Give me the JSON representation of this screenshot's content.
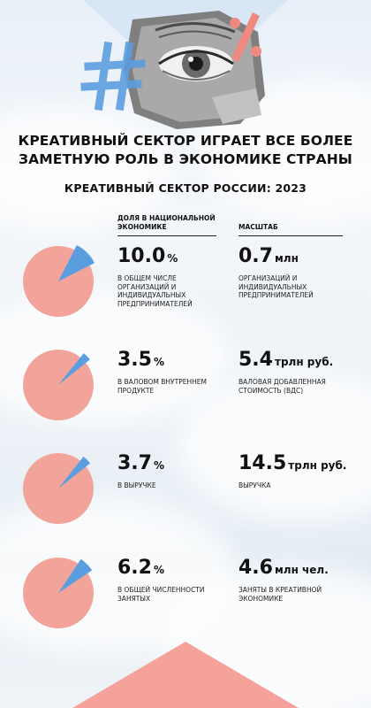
{
  "headline": {
    "line1": "КРЕАТИВНЫЙ СЕКТОР ИГРАЕТ ВСЕ БОЛЕЕ",
    "line2": "ЗАМЕТНУЮ РОЛЬ В ЭКОНОМИКЕ СТРАНЫ"
  },
  "subheadline": "КРЕАТИВНЫЙ СЕКТОР РОССИИ: 2023",
  "columns": {
    "share": "ДОЛЯ В НАЦИОНАЛЬНОЙ ЭКОНОМИКЕ",
    "scale": "МАСШТАБ"
  },
  "colors": {
    "pie_rest": "#f2a49a",
    "pie_share": "#5b9ee0",
    "triangle": "#f5a39a",
    "hashtag": "#5b9ee0",
    "percent_sign": "#f08a80"
  },
  "decor_icons": [
    "eye-collage",
    "hashtag-icon",
    "percent-icon"
  ],
  "chart_data": {
    "type": "pie",
    "rows": [
      {
        "share": {
          "value": "10.0",
          "unit": "%",
          "desc": "В ОБЩЕМ ЧИСЛЕ ОРГАНИЗАЦИЙ И ИНДИВИДУАЛЬНЫХ ПРЕДПРИНИМАТЕЛЕЙ"
        },
        "scale": {
          "value": "0.7",
          "unit": "млн",
          "desc": "ОРГАНИЗАЦИЙ И ИНДИВИДУАЛЬНЫХ ПРЕДПРИНИМАТЕЛЕЙ"
        },
        "percent": 10.0
      },
      {
        "share": {
          "value": "3.5",
          "unit": "%",
          "desc": "В ВАЛОВОМ ВНУТРЕННЕМ ПРОДУКТЕ"
        },
        "scale": {
          "value": "5.4",
          "unit": "трлн руб.",
          "desc": "ВАЛОВАЯ ДОБАВЛЕННАЯ СТОИМОСТЬ (ВДС)"
        },
        "percent": 3.5
      },
      {
        "share": {
          "value": "3.7",
          "unit": "%",
          "desc": "В ВЫРУЧКЕ"
        },
        "scale": {
          "value": "14.5",
          "unit": "трлн руб.",
          "desc": "ВЫРУЧКА"
        },
        "percent": 3.7
      },
      {
        "share": {
          "value": "6.2",
          "unit": "%",
          "desc": "В ОБЩЕЙ ЧИСЛЕННОСТИ ЗАНЯТЫХ"
        },
        "scale": {
          "value": "4.6",
          "unit": "млн чел.",
          "desc": "ЗАНЯТЫ В КРЕАТИВНОЙ ЭКОНОМИКЕ"
        },
        "percent": 6.2
      }
    ]
  }
}
